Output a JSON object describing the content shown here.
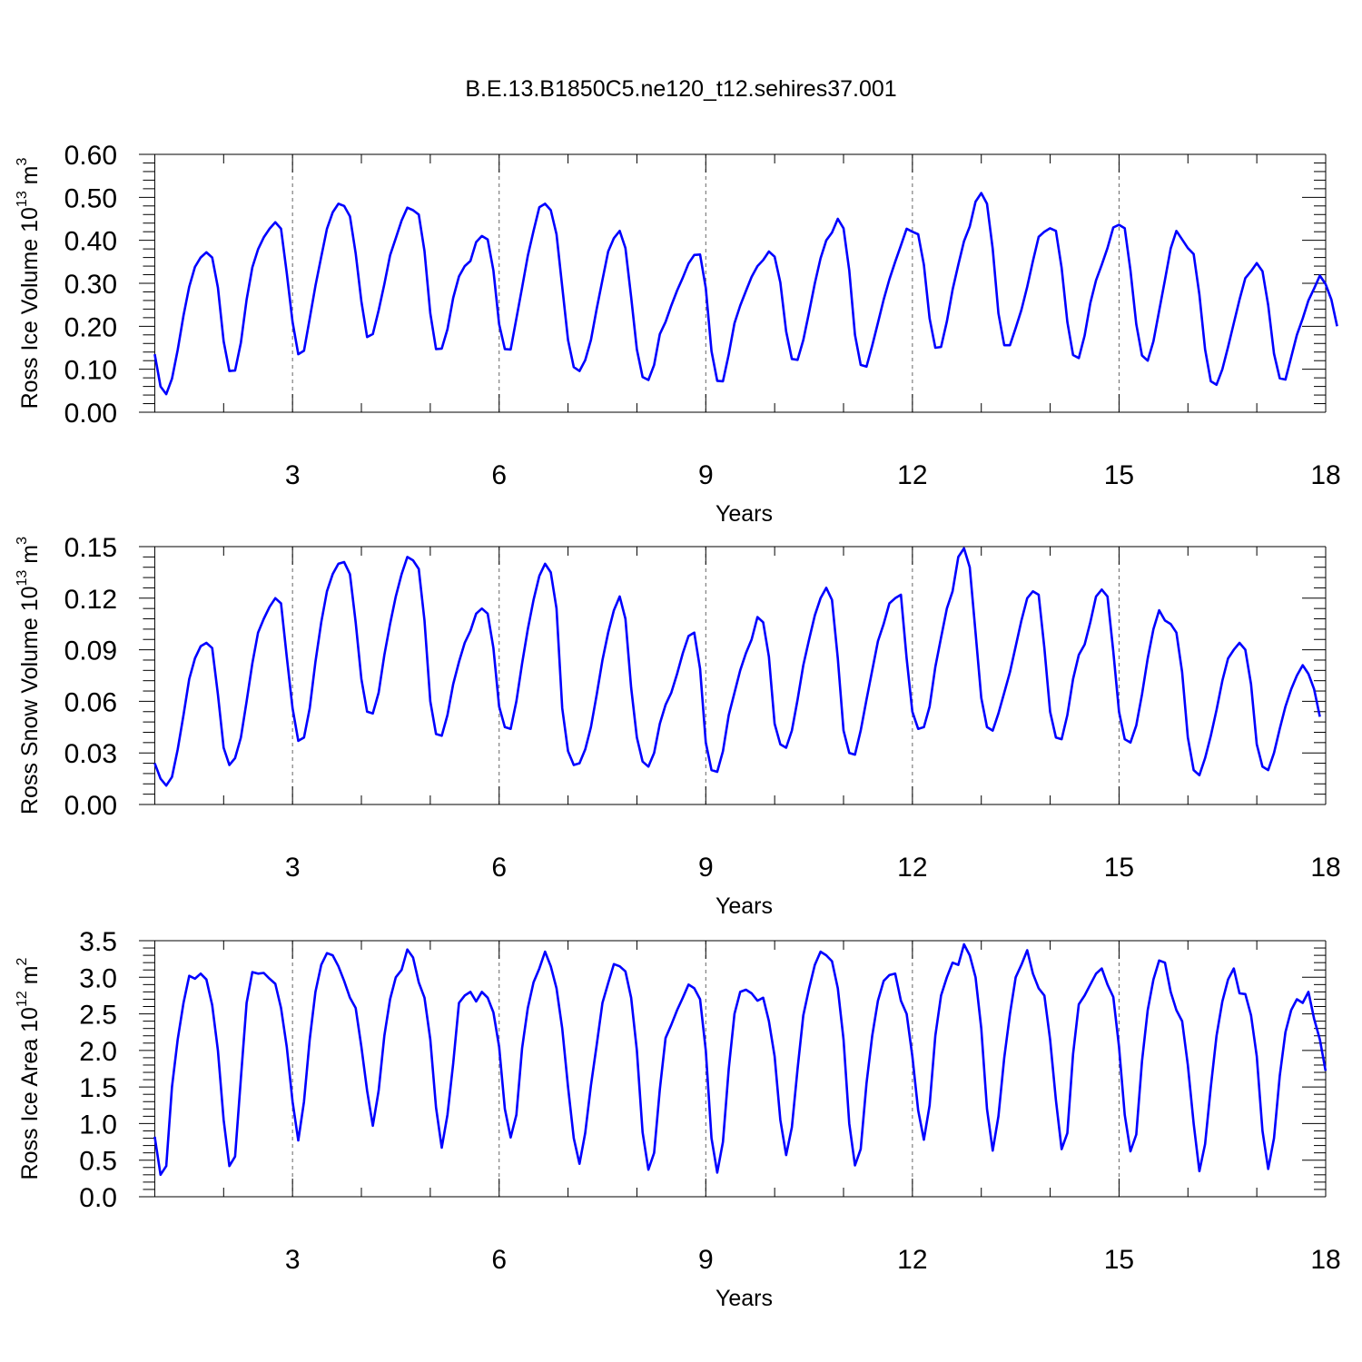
{
  "title": "B.E.13.B1850C5.ne120_t12.sehires37.001",
  "colors": {
    "series": "#0000ff",
    "grid": "#666666"
  },
  "chart_data": [
    {
      "type": "line",
      "xlabel": "Years",
      "ylabel": {
        "main": "Ross Ice Volume 10",
        "exp": "13",
        "unit": " m",
        "unit_exp": "3"
      },
      "xlim": [
        0.77,
        18
      ],
      "ylim": [
        0,
        0.6
      ],
      "xticks": [
        3,
        6,
        9,
        12,
        15,
        18
      ],
      "xtick_labels": [
        "3",
        "6",
        "9",
        "12",
        "15",
        "18"
      ],
      "yticks": [
        0,
        0.1,
        0.2,
        0.3,
        0.4,
        0.5,
        0.6
      ],
      "ytick_labels": [
        "0.00",
        "0.10",
        "0.20",
        "0.30",
        "0.40",
        "0.50",
        "0.60"
      ],
      "grid": "vertical dashed at major x ticks",
      "x_start": 1.0,
      "x_step": 0.08333,
      "series": [
        {
          "values": [
            0.135,
            0.06,
            0.042,
            0.078,
            0.145,
            0.225,
            0.292,
            0.338,
            0.36,
            0.372,
            0.36,
            0.29,
            0.165,
            0.096,
            0.097,
            0.162,
            0.262,
            0.337,
            0.379,
            0.407,
            0.427,
            0.442,
            0.427,
            0.324,
            0.21,
            0.135,
            0.143,
            0.218,
            0.294,
            0.362,
            0.427,
            0.465,
            0.485,
            0.48,
            0.456,
            0.37,
            0.258,
            0.175,
            0.182,
            0.237,
            0.298,
            0.365,
            0.405,
            0.446,
            0.476,
            0.47,
            0.46,
            0.375,
            0.23,
            0.147,
            0.148,
            0.193,
            0.266,
            0.316,
            0.34,
            0.352,
            0.396,
            0.41,
            0.402,
            0.33,
            0.205,
            0.147,
            0.146,
            0.218,
            0.29,
            0.364,
            0.422,
            0.477,
            0.485,
            0.47,
            0.414,
            0.292,
            0.168,
            0.105,
            0.096,
            0.121,
            0.168,
            0.241,
            0.308,
            0.374,
            0.405,
            0.422,
            0.382,
            0.268,
            0.146,
            0.082,
            0.075,
            0.11,
            0.182,
            0.21,
            0.248,
            0.283,
            0.313,
            0.346,
            0.366,
            0.367,
            0.289,
            0.142,
            0.073,
            0.072,
            0.135,
            0.207,
            0.248,
            0.282,
            0.315,
            0.34,
            0.354,
            0.374,
            0.362,
            0.302,
            0.188,
            0.124,
            0.122,
            0.168,
            0.233,
            0.3,
            0.358,
            0.4,
            0.418,
            0.45,
            0.428,
            0.33,
            0.18,
            0.11,
            0.106,
            0.155,
            0.208,
            0.262,
            0.309,
            0.35,
            0.388,
            0.427,
            0.42,
            0.414,
            0.343,
            0.218,
            0.15,
            0.152,
            0.211,
            0.285,
            0.343,
            0.398,
            0.432,
            0.49,
            0.51,
            0.485,
            0.38,
            0.23,
            0.156,
            0.156,
            0.196,
            0.238,
            0.292,
            0.352,
            0.408,
            0.42,
            0.428,
            0.422,
            0.336,
            0.21,
            0.133,
            0.126,
            0.178,
            0.254,
            0.307,
            0.343,
            0.382,
            0.43,
            0.436,
            0.428,
            0.33,
            0.205,
            0.132,
            0.12,
            0.165,
            0.236,
            0.308,
            0.381,
            0.422,
            0.402,
            0.382,
            0.368,
            0.274,
            0.146,
            0.072,
            0.064,
            0.1,
            0.152,
            0.207,
            0.262,
            0.312,
            0.328,
            0.347,
            0.328,
            0.249,
            0.136,
            0.079,
            0.076,
            0.128,
            0.18,
            0.218,
            0.26,
            0.288,
            0.318,
            0.298,
            0.262,
            0.2
          ]
        }
      ]
    },
    {
      "type": "line",
      "xlabel": "Years",
      "ylabel": {
        "main": "Ross Snow Volume 10",
        "exp": "13",
        "unit": " m",
        "unit_exp": "3"
      },
      "xlim": [
        0.77,
        18
      ],
      "ylim": [
        0,
        0.15
      ],
      "xticks": [
        3,
        6,
        9,
        12,
        15,
        18
      ],
      "xtick_labels": [
        "3",
        "6",
        "9",
        "12",
        "15",
        "18"
      ],
      "yticks": [
        0,
        0.03,
        0.06,
        0.09,
        0.12,
        0.15
      ],
      "ytick_labels": [
        "0.00",
        "0.03",
        "0.06",
        "0.09",
        "0.12",
        "0.15"
      ],
      "grid": "vertical dashed at major x ticks",
      "x_start": 1.0,
      "x_step": 0.08333,
      "series": [
        {
          "values": [
            0.024,
            0.015,
            0.011,
            0.016,
            0.032,
            0.052,
            0.073,
            0.085,
            0.092,
            0.094,
            0.091,
            0.064,
            0.033,
            0.023,
            0.027,
            0.039,
            0.06,
            0.082,
            0.1,
            0.108,
            0.115,
            0.12,
            0.117,
            0.086,
            0.056,
            0.037,
            0.039,
            0.056,
            0.083,
            0.106,
            0.124,
            0.134,
            0.14,
            0.141,
            0.134,
            0.106,
            0.073,
            0.054,
            0.053,
            0.065,
            0.087,
            0.105,
            0.121,
            0.134,
            0.144,
            0.142,
            0.137,
            0.107,
            0.06,
            0.041,
            0.04,
            0.052,
            0.07,
            0.083,
            0.094,
            0.101,
            0.111,
            0.114,
            0.111,
            0.091,
            0.057,
            0.045,
            0.044,
            0.06,
            0.082,
            0.102,
            0.119,
            0.133,
            0.14,
            0.135,
            0.114,
            0.056,
            0.031,
            0.023,
            0.024,
            0.032,
            0.045,
            0.064,
            0.084,
            0.1,
            0.113,
            0.121,
            0.108,
            0.068,
            0.039,
            0.025,
            0.022,
            0.03,
            0.047,
            0.058,
            0.065,
            0.076,
            0.088,
            0.098,
            0.1,
            0.079,
            0.036,
            0.02,
            0.019,
            0.031,
            0.052,
            0.065,
            0.078,
            0.088,
            0.096,
            0.109,
            0.106,
            0.086,
            0.047,
            0.035,
            0.033,
            0.043,
            0.061,
            0.081,
            0.096,
            0.11,
            0.12,
            0.126,
            0.119,
            0.085,
            0.043,
            0.03,
            0.029,
            0.043,
            0.061,
            0.078,
            0.095,
            0.105,
            0.117,
            0.12,
            0.122,
            0.085,
            0.054,
            0.044,
            0.045,
            0.057,
            0.08,
            0.097,
            0.114,
            0.124,
            0.144,
            0.149,
            0.138,
            0.1,
            0.062,
            0.045,
            0.043,
            0.053,
            0.065,
            0.077,
            0.092,
            0.107,
            0.12,
            0.124,
            0.122,
            0.091,
            0.054,
            0.039,
            0.038,
            0.052,
            0.073,
            0.087,
            0.093,
            0.106,
            0.121,
            0.125,
            0.121,
            0.089,
            0.054,
            0.038,
            0.036,
            0.046,
            0.064,
            0.085,
            0.102,
            0.113,
            0.107,
            0.105,
            0.1,
            0.077,
            0.039,
            0.02,
            0.017,
            0.027,
            0.04,
            0.055,
            0.072,
            0.085,
            0.09,
            0.094,
            0.09,
            0.07,
            0.035,
            0.022,
            0.02,
            0.03,
            0.044,
            0.057,
            0.067,
            0.075,
            0.081,
            0.076,
            0.067,
            0.051
          ]
        }
      ]
    },
    {
      "type": "line",
      "xlabel": "Years",
      "ylabel": {
        "main": "Ross Ice Area 10",
        "exp": "12",
        "unit": " m",
        "unit_exp": "2"
      },
      "xlim": [
        0.77,
        18
      ],
      "ylim": [
        0,
        3.5
      ],
      "xticks": [
        3,
        6,
        9,
        12,
        15,
        18
      ],
      "xtick_labels": [
        "3",
        "6",
        "9",
        "12",
        "15",
        "18"
      ],
      "yticks": [
        0,
        0.5,
        1.0,
        1.5,
        2.0,
        2.5,
        3.0,
        3.5
      ],
      "ytick_labels": [
        "0.0",
        "0.5",
        "1.0",
        "1.5",
        "2.0",
        "2.5",
        "3.0",
        "3.5"
      ],
      "grid": "vertical dashed at major x ticks",
      "x_start": 1.0,
      "x_step": 0.08333,
      "series": [
        {
          "values": [
            0.82,
            0.3,
            0.42,
            1.5,
            2.15,
            2.65,
            3.02,
            2.98,
            3.05,
            2.97,
            2.62,
            2.0,
            1.05,
            0.42,
            0.55,
            1.62,
            2.65,
            3.07,
            3.05,
            3.06,
            2.98,
            2.91,
            2.58,
            2.05,
            1.3,
            0.77,
            1.3,
            2.15,
            2.8,
            3.17,
            3.33,
            3.3,
            3.15,
            2.95,
            2.72,
            2.58,
            2.05,
            1.45,
            0.97,
            1.45,
            2.2,
            2.7,
            3.0,
            3.1,
            3.38,
            3.27,
            2.93,
            2.72,
            2.15,
            1.22,
            0.67,
            1.12,
            1.82,
            2.65,
            2.75,
            2.8,
            2.67,
            2.8,
            2.72,
            2.52,
            2.05,
            1.2,
            0.81,
            1.12,
            2.03,
            2.58,
            2.93,
            3.12,
            3.35,
            3.15,
            2.85,
            2.3,
            1.5,
            0.8,
            0.45,
            0.87,
            1.52,
            2.08,
            2.65,
            2.92,
            3.18,
            3.15,
            3.08,
            2.72,
            2.0,
            0.88,
            0.37,
            0.6,
            1.47,
            2.17,
            2.35,
            2.55,
            2.72,
            2.9,
            2.85,
            2.7,
            2.0,
            0.8,
            0.33,
            0.75,
            1.75,
            2.5,
            2.8,
            2.83,
            2.78,
            2.68,
            2.72,
            2.4,
            1.92,
            1.05,
            0.57,
            0.95,
            1.75,
            2.48,
            2.85,
            3.17,
            3.35,
            3.3,
            3.22,
            2.85,
            2.15,
            1.0,
            0.43,
            0.65,
            1.55,
            2.2,
            2.68,
            2.95,
            3.03,
            3.05,
            2.68,
            2.5,
            1.92,
            1.18,
            0.78,
            1.25,
            2.2,
            2.75,
            3.0,
            3.2,
            3.17,
            3.45,
            3.3,
            3.0,
            2.3,
            1.2,
            0.63,
            1.1,
            1.9,
            2.5,
            3.0,
            3.17,
            3.37,
            3.05,
            2.85,
            2.75,
            2.15,
            1.32,
            0.65,
            0.87,
            1.95,
            2.63,
            2.75,
            2.9,
            3.05,
            3.12,
            2.9,
            2.73,
            2.05,
            1.12,
            0.62,
            0.85,
            1.85,
            2.55,
            2.97,
            3.23,
            3.2,
            2.8,
            2.55,
            2.4,
            1.8,
            1.0,
            0.35,
            0.72,
            1.5,
            2.2,
            2.67,
            2.97,
            3.12,
            2.78,
            2.77,
            2.48,
            1.92,
            0.9,
            0.38,
            0.8,
            1.65,
            2.25,
            2.55,
            2.7,
            2.65,
            2.8,
            2.43,
            2.15,
            1.72
          ]
        }
      ]
    }
  ]
}
